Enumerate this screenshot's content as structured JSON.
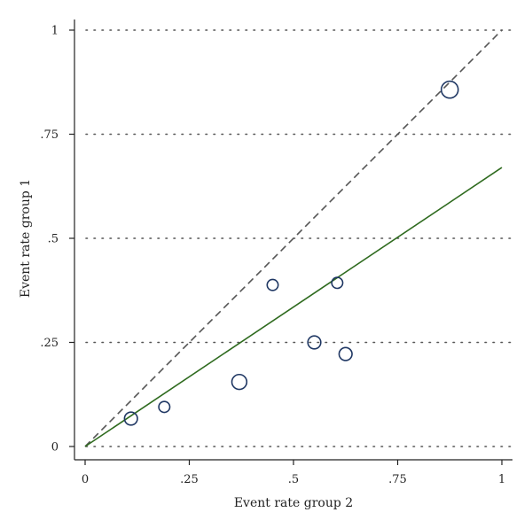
{
  "chart_data": {
    "type": "scatter",
    "xlabel": "Event rate group 2",
    "ylabel": "Event rate group 1",
    "xlim": [
      0,
      1
    ],
    "ylim": [
      0,
      1
    ],
    "xticks": [
      {
        "value": 0,
        "label": "0"
      },
      {
        "value": 0.25,
        "label": ".25"
      },
      {
        "value": 0.5,
        "label": ".5"
      },
      {
        "value": 0.75,
        "label": ".75"
      },
      {
        "value": 1,
        "label": "1"
      }
    ],
    "yticks": [
      {
        "value": 0,
        "label": "0"
      },
      {
        "value": 0.25,
        "label": ".25"
      },
      {
        "value": 0.5,
        "label": ".5"
      },
      {
        "value": 0.75,
        "label": ".75"
      },
      {
        "value": 1,
        "label": "1"
      }
    ],
    "grid": true,
    "points": [
      {
        "x": 0.11,
        "y": 0.067,
        "size": 3
      },
      {
        "x": 0.19,
        "y": 0.095,
        "size": 2
      },
      {
        "x": 0.37,
        "y": 0.155,
        "size": 4
      },
      {
        "x": 0.45,
        "y": 0.388,
        "size": 2
      },
      {
        "x": 0.55,
        "y": 0.25,
        "size": 3
      },
      {
        "x": 0.605,
        "y": 0.393,
        "size": 2
      },
      {
        "x": 0.625,
        "y": 0.222,
        "size": 3
      },
      {
        "x": 0.875,
        "y": 0.857,
        "size": 5
      }
    ],
    "reference_line": {
      "from": [
        0,
        0
      ],
      "to": [
        1,
        1
      ],
      "style": "dashed",
      "color": "#555555"
    },
    "fit_line": {
      "from": [
        0,
        0
      ],
      "to": [
        1,
        0.67
      ],
      "style": "solid",
      "color": "#2f6b1f"
    },
    "marker_color": "#1f3763"
  }
}
